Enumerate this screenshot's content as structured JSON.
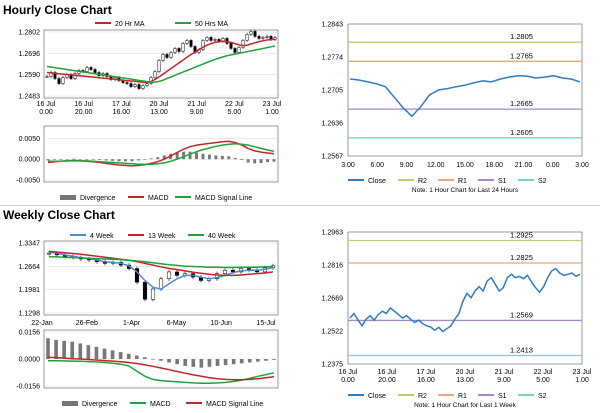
{
  "page": {
    "hourly_title": "Hourly Close Chart",
    "weekly_title": "Weekly Close Chart"
  },
  "colors": {
    "ma_short": "#c0272d",
    "ma_long": "#1fa33c",
    "macd": "#c0272d",
    "signal": "#1fa33c",
    "divergence": "#777777",
    "close": "#2e7bc4",
    "r2": "#b8cf6b",
    "r1": "#e8a77f",
    "s1": "#a58ac4",
    "s2": "#7fcfc4",
    "week4": "#4f8ad0",
    "grid": "#d9d9d9",
    "axis": "#555555",
    "candle": "#000000"
  },
  "chart_data": [
    {
      "id": "hourly-price",
      "type": "line",
      "title": "Hourly Close Chart",
      "legend": [
        {
          "key": "ma20",
          "name": "20 Hr MA",
          "color_key": "ma_short"
        },
        {
          "key": "ma50",
          "name": "50 Hrs MA",
          "color_key": "ma_long"
        }
      ],
      "y_ticks": [
        "1.2802",
        "1.2696",
        "1.2590",
        "1.2483"
      ],
      "y_values": [
        1.2802,
        1.2696,
        1.259,
        1.2483
      ],
      "ylim": [
        1.2483,
        1.2802
      ],
      "x_ticks": [
        [
          "16 Jul",
          "0.00"
        ],
        [
          "16 Jul",
          "20.00"
        ],
        [
          "17 Jul",
          "16.00"
        ],
        [
          "20 Jul",
          "13.00"
        ],
        [
          "21 Jul",
          "9.00"
        ],
        [
          "22 Jul",
          "5.00"
        ],
        [
          "23 Jul",
          "1.00"
        ]
      ],
      "price": [
        1.258,
        1.26,
        1.257,
        1.2545,
        1.2575,
        1.259,
        1.257,
        1.2595,
        1.261,
        1.2605,
        1.2625,
        1.2615,
        1.26,
        1.2585,
        1.2595,
        1.258,
        1.2565,
        1.2575,
        1.256,
        1.255,
        1.2545,
        1.253,
        1.254,
        1.252,
        1.2535,
        1.2545,
        1.2575,
        1.2605,
        1.266,
        1.269,
        1.2675,
        1.27,
        1.272,
        1.2705,
        1.2745,
        1.276,
        1.273,
        1.27,
        1.2715,
        1.276,
        1.2775,
        1.276,
        1.2765,
        1.2755,
        1.277,
        1.2745,
        1.272,
        1.27,
        1.2725,
        1.276,
        1.279,
        1.2805,
        1.278,
        1.277,
        1.2775,
        1.278,
        1.2765,
        1.2775
      ],
      "ma20": [
        1.26,
        1.2598,
        1.2596,
        1.2594,
        1.2592,
        1.259,
        1.2588,
        1.2586,
        1.2584,
        1.2582,
        1.258,
        1.2578,
        1.2576,
        1.2574,
        1.2572,
        1.257,
        1.2568,
        1.2566,
        1.2564,
        1.2562,
        1.256,
        1.2558,
        1.2556,
        1.2554,
        1.2552,
        1.255,
        1.2555,
        1.2565,
        1.2578,
        1.2592,
        1.2606,
        1.262,
        1.2634,
        1.2648,
        1.2662,
        1.2676,
        1.269,
        1.2702,
        1.2714,
        1.2726,
        1.2736,
        1.2744,
        1.275,
        1.2754,
        1.2756,
        1.2754,
        1.275,
        1.2744,
        1.2738,
        1.2734,
        1.2736,
        1.2742,
        1.2748,
        1.2754,
        1.2758,
        1.2762,
        1.2764,
        1.2766
      ],
      "ma50": [
        1.263,
        1.2627,
        1.2624,
        1.2621,
        1.2618,
        1.2615,
        1.2612,
        1.2609,
        1.2606,
        1.2603,
        1.26,
        1.2597,
        1.2594,
        1.2591,
        1.2588,
        1.2585,
        1.2582,
        1.2579,
        1.2576,
        1.2573,
        1.257,
        1.2567,
        1.2564,
        1.2561,
        1.2558,
        1.2555,
        1.2552,
        1.2552,
        1.2556,
        1.2562,
        1.257,
        1.2578,
        1.2586,
        1.2594,
        1.2602,
        1.261,
        1.2618,
        1.2626,
        1.2634,
        1.2642,
        1.265,
        1.2658,
        1.2666,
        1.2672,
        1.2678,
        1.2684,
        1.2688,
        1.2692,
        1.2696,
        1.27,
        1.2704,
        1.2708,
        1.2712,
        1.2716,
        1.272,
        1.2724,
        1.2728,
        1.2732
      ]
    },
    {
      "id": "hourly-macd",
      "type": "line",
      "legend": [
        {
          "key": "divergence",
          "name": "Divergence",
          "color_key": "divergence"
        },
        {
          "key": "macd",
          "name": "MACD",
          "color_key": "macd"
        },
        {
          "key": "signal",
          "name": "MACD Signal Line",
          "color_key": "signal"
        }
      ],
      "y_ticks": [
        "0.0050",
        "0.0000",
        "-0.0050"
      ],
      "y_values": [
        0.005,
        0.0,
        -0.005
      ],
      "ylim": [
        -0.005,
        0.0075
      ],
      "macd": [
        -0.0008,
        -0.0006,
        -0.0005,
        -0.0004,
        -0.0003,
        -0.0004,
        -0.0005,
        -0.0006,
        -0.0008,
        -0.001,
        -0.0012,
        -0.0014,
        -0.0015,
        -0.0016,
        -0.0015,
        -0.0013,
        -0.001,
        -0.0006,
        0.0,
        0.0008,
        0.0016,
        0.0024,
        0.003,
        0.0034,
        0.0036,
        0.0038,
        0.004,
        0.0042,
        0.0043,
        0.004,
        0.0034,
        0.0026,
        0.002,
        0.0017,
        0.0015,
        0.0013
      ],
      "signal": [
        -0.0005,
        -0.0005,
        -0.0005,
        -0.0004,
        -0.0004,
        -0.0004,
        -0.0004,
        -0.0005,
        -0.0006,
        -0.0007,
        -0.0008,
        -0.0009,
        -0.001,
        -0.0011,
        -0.0012,
        -0.0012,
        -0.0012,
        -0.0011,
        -0.0009,
        -0.0005,
        0.0,
        0.0006,
        0.0012,
        0.0018,
        0.0023,
        0.0027,
        0.0031,
        0.0034,
        0.0036,
        0.0037,
        0.0036,
        0.0034,
        0.003,
        0.0026,
        0.0022,
        0.0019
      ],
      "divergence": [
        -0.0003,
        -0.0001,
        0.0,
        0.0,
        0.0001,
        0.0,
        -0.0001,
        -0.0001,
        -0.0002,
        -0.0003,
        -0.0004,
        -0.0005,
        -0.0005,
        -0.0005,
        -0.0003,
        -0.0001,
        0.0002,
        0.0005,
        0.0009,
        0.0013,
        0.0016,
        0.0018,
        0.0018,
        0.0016,
        0.0013,
        0.0011,
        0.0009,
        0.0008,
        0.0007,
        0.0003,
        -0.0002,
        -0.0008,
        -0.001,
        -0.0009,
        -0.0007,
        -0.0006
      ]
    },
    {
      "id": "hourly-levels",
      "type": "line",
      "note": "Note: 1 Hour Chart for Last 24 Hours",
      "legend": [
        {
          "key": "close",
          "name": "Close",
          "color_key": "close"
        },
        {
          "key": "r2",
          "name": "R2",
          "color_key": "r2"
        },
        {
          "key": "r1",
          "name": "R1",
          "color_key": "r1"
        },
        {
          "key": "s1",
          "name": "S1",
          "color_key": "s1"
        },
        {
          "key": "s2",
          "name": "S2",
          "color_key": "s2"
        }
      ],
      "y_ticks": [
        "1.2843",
        "1.2774",
        "1.2705",
        "1.2636",
        "1.2567"
      ],
      "ylim": [
        1.2567,
        1.2843
      ],
      "x_ticks": [
        "3.00",
        "6.00",
        "9.00",
        "12.00",
        "15.00",
        "18.00",
        "21.00",
        "0.00",
        "3.00"
      ],
      "levels": [
        {
          "key": "r2",
          "label": "1.2805",
          "value": 1.2805
        },
        {
          "key": "r1",
          "label": "1.2765",
          "value": 1.2765
        },
        {
          "key": "s1",
          "label": "1.2665",
          "value": 1.2665
        },
        {
          "key": "s2",
          "label": "1.2605",
          "value": 1.2605
        }
      ],
      "close": [
        1.2728,
        1.2726,
        1.2722,
        1.2718,
        1.2712,
        1.269,
        1.2668,
        1.265,
        1.267,
        1.2695,
        1.2705,
        1.2708,
        1.2712,
        1.2715,
        1.272,
        1.2724,
        1.2722,
        1.2728,
        1.2732,
        1.2735,
        1.2734,
        1.273,
        1.2732,
        1.2735,
        1.273,
        1.2728,
        1.2722
      ]
    },
    {
      "id": "weekly-price",
      "type": "line",
      "title": "Weekly Close Chart",
      "legend": [
        {
          "key": "w4",
          "name": "4 Week",
          "color_key": "week4"
        },
        {
          "key": "w13",
          "name": "13 Week",
          "color_key": "ma_short"
        },
        {
          "key": "w40",
          "name": "40 Week",
          "color_key": "ma_long"
        }
      ],
      "y_ticks": [
        "1.3347",
        "1.2664",
        "1.1981",
        "1.1298"
      ],
      "y_values": [
        1.3347,
        1.2664,
        1.1981,
        1.1298
      ],
      "ylim": [
        1.1298,
        1.3347
      ],
      "x_ticks": [
        "22-Jan",
        "26-Feb",
        "1-Apr",
        "6-May",
        "10-Jun",
        "15-Jul"
      ],
      "closes": [
        1.305,
        1.3,
        1.295,
        1.292,
        1.288,
        1.285,
        1.28,
        1.275,
        1.278,
        1.27,
        1.26,
        1.22,
        1.17,
        1.2,
        1.23,
        1.25,
        1.24,
        1.245,
        1.235,
        1.225,
        1.23,
        1.245,
        1.255,
        1.25,
        1.26,
        1.255,
        1.25,
        1.262,
        1.268
      ],
      "w4": [
        1.308,
        1.305,
        1.3,
        1.296,
        1.292,
        1.289,
        1.285,
        1.28,
        1.278,
        1.275,
        1.268,
        1.25,
        1.225,
        1.205,
        1.2,
        1.215,
        1.23,
        1.24,
        1.24,
        1.235,
        1.23,
        1.233,
        1.24,
        1.248,
        1.253,
        1.255,
        1.255,
        1.258,
        1.262
      ],
      "w13": [
        1.31,
        1.308,
        1.306,
        1.304,
        1.302,
        1.299,
        1.296,
        1.293,
        1.29,
        1.287,
        1.284,
        1.28,
        1.275,
        1.27,
        1.265,
        1.26,
        1.257,
        1.253,
        1.249,
        1.246,
        1.243,
        1.241,
        1.24,
        1.24,
        1.241,
        1.243,
        1.245,
        1.247,
        1.25
      ],
      "w40": [
        1.295,
        1.294,
        1.293,
        1.292,
        1.291,
        1.29,
        1.289,
        1.288,
        1.287,
        1.286,
        1.284,
        1.282,
        1.28,
        1.277,
        1.274,
        1.271,
        1.269,
        1.267,
        1.266,
        1.265,
        1.264,
        1.2635,
        1.263,
        1.263,
        1.2632,
        1.2635,
        1.264,
        1.2648,
        1.2655
      ]
    },
    {
      "id": "weekly-macd",
      "type": "line",
      "legend": [
        {
          "key": "divergence",
          "name": "Divergence",
          "color_key": "divergence"
        },
        {
          "key": "macd",
          "name": "MACD",
          "color_key": "signal"
        },
        {
          "key": "signal",
          "name": "MACD Signal Line",
          "color_key": "macd"
        }
      ],
      "y_ticks": [
        "0.0156",
        "0.0000",
        "-0.0156"
      ],
      "y_values": [
        0.0156,
        0.0,
        -0.0156
      ],
      "ylim": [
        -0.0156,
        0.0156
      ],
      "macd": [
        -0.001,
        -0.001,
        -0.0011,
        -0.0012,
        -0.0013,
        -0.0015,
        -0.0017,
        -0.002,
        -0.0025,
        -0.003,
        -0.004,
        -0.007,
        -0.01,
        -0.0118,
        -0.0125,
        -0.0128,
        -0.0132,
        -0.0135,
        -0.0138,
        -0.014,
        -0.014,
        -0.0138,
        -0.0135,
        -0.013,
        -0.0122,
        -0.0112,
        -0.01,
        -0.009,
        -0.008
      ],
      "signal": [
        0.001,
        0.0008,
        0.0005,
        0.0002,
        0.0,
        -0.0003,
        -0.0006,
        -0.0009,
        -0.0012,
        -0.0016,
        -0.002,
        -0.0026,
        -0.0034,
        -0.0042,
        -0.0052,
        -0.0062,
        -0.0072,
        -0.0082,
        -0.0092,
        -0.01,
        -0.0108,
        -0.0114,
        -0.0118,
        -0.012,
        -0.012,
        -0.0118,
        -0.0114,
        -0.0108,
        -0.0102
      ],
      "divergence": [
        0.012,
        0.011,
        0.0105,
        0.01,
        0.009,
        0.008,
        0.007,
        0.006,
        0.005,
        0.004,
        0.003,
        0.002,
        0.001,
        0.0,
        -0.001,
        -0.002,
        -0.003,
        -0.004,
        -0.0045,
        -0.005,
        -0.0045,
        -0.004,
        -0.0035,
        -0.003,
        -0.0025,
        -0.002,
        -0.0015,
        -0.001,
        -0.0005
      ]
    },
    {
      "id": "weekly-levels",
      "type": "line",
      "note": "Note: 1 Hour Chart for Last 1 Week",
      "legend": [
        {
          "key": "close",
          "name": "Close",
          "color_key": "close"
        },
        {
          "key": "r2",
          "name": "R2",
          "color_key": "r2"
        },
        {
          "key": "r1",
          "name": "R1",
          "color_key": "r1"
        },
        {
          "key": "s1",
          "name": "S1",
          "color_key": "s1"
        },
        {
          "key": "s2",
          "name": "S2",
          "color_key": "s2"
        }
      ],
      "y_ticks": [
        "1.2963",
        "1.2816",
        "1.2669",
        "1.2522",
        "1.2375"
      ],
      "ylim": [
        1.2375,
        1.2963
      ],
      "x_ticks": [
        [
          "16 Jul",
          "0.00"
        ],
        [
          "16 Jul",
          "20.00"
        ],
        [
          "17 Jul",
          "16.00"
        ],
        [
          "20 Jul",
          "13.00"
        ],
        [
          "21 Jul",
          "9.00"
        ],
        [
          "22 Jul",
          "5.00"
        ],
        [
          "23 Jul",
          "1.00"
        ]
      ],
      "levels": [
        {
          "key": "r2",
          "label": "1.2925",
          "value": 1.2925
        },
        {
          "key": "r1",
          "label": "1.2825",
          "value": 1.2825
        },
        {
          "key": "s1",
          "label": "1.2569",
          "value": 1.2569
        },
        {
          "key": "s2",
          "label": "1.2413",
          "value": 1.2413
        }
      ],
      "close": [
        1.258,
        1.26,
        1.257,
        1.2545,
        1.2575,
        1.259,
        1.257,
        1.2595,
        1.261,
        1.26,
        1.2625,
        1.261,
        1.2595,
        1.258,
        1.259,
        1.2575,
        1.256,
        1.257,
        1.2555,
        1.2545,
        1.254,
        1.2525,
        1.2538,
        1.252,
        1.2532,
        1.2545,
        1.2575,
        1.26,
        1.2655,
        1.269,
        1.267,
        1.27,
        1.272,
        1.27,
        1.2745,
        1.276,
        1.273,
        1.27,
        1.2715,
        1.276,
        1.2775,
        1.276,
        1.2765,
        1.2755,
        1.277,
        1.274,
        1.2715,
        1.2695,
        1.272,
        1.276,
        1.279,
        1.28,
        1.278,
        1.277,
        1.2775,
        1.278,
        1.2765,
        1.2775
      ]
    }
  ]
}
